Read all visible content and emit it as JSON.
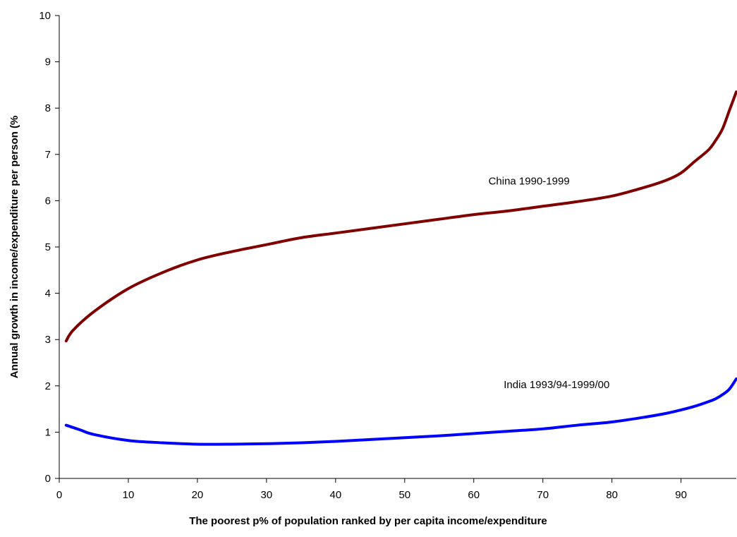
{
  "chart_data": {
    "type": "line",
    "title": "",
    "xlabel": "The poorest p% of population ranked by per capita income/expenditure",
    "ylabel": "Annual growth in income/expenditure per person (%",
    "xlim": [
      0,
      98
    ],
    "ylim": [
      0,
      10
    ],
    "xticks": [
      "0",
      "10",
      "20",
      "30",
      "40",
      "50",
      "60",
      "70",
      "80",
      "90"
    ],
    "yticks": [
      "0",
      "1",
      "2",
      "3",
      "4",
      "5",
      "6",
      "7",
      "8",
      "9",
      "10"
    ],
    "grid": false,
    "legend": "none",
    "series": [
      {
        "name": "China 1990-1999",
        "color": "#800000",
        "x": [
          1,
          2,
          5,
          10,
          15,
          20,
          25,
          30,
          35,
          40,
          45,
          50,
          55,
          60,
          65,
          70,
          75,
          80,
          85,
          88,
          90,
          92,
          94,
          95,
          96,
          97,
          98
        ],
        "y": [
          2.97,
          3.2,
          3.6,
          4.1,
          4.45,
          4.72,
          4.9,
          5.05,
          5.2,
          5.3,
          5.4,
          5.5,
          5.6,
          5.7,
          5.78,
          5.88,
          5.98,
          6.1,
          6.3,
          6.45,
          6.6,
          6.85,
          7.1,
          7.3,
          7.55,
          7.95,
          8.35
        ]
      },
      {
        "name": "India 1993/94-1999/00",
        "color": "#0000ff",
        "x": [
          1,
          3,
          5,
          10,
          15,
          20,
          25,
          30,
          35,
          40,
          45,
          50,
          55,
          60,
          65,
          70,
          75,
          80,
          85,
          88,
          90,
          92,
          94,
          95,
          96,
          97,
          98
        ],
        "y": [
          1.15,
          1.05,
          0.95,
          0.82,
          0.77,
          0.74,
          0.74,
          0.75,
          0.77,
          0.8,
          0.84,
          0.88,
          0.92,
          0.97,
          1.02,
          1.07,
          1.15,
          1.22,
          1.33,
          1.41,
          1.48,
          1.56,
          1.66,
          1.72,
          1.81,
          1.93,
          2.15
        ]
      }
    ],
    "annotations": [
      {
        "text": "China 1990-1999",
        "x": 68,
        "y": 6.35
      },
      {
        "text": "India 1993/94-1999/00",
        "x": 72,
        "y": 1.95
      }
    ]
  }
}
